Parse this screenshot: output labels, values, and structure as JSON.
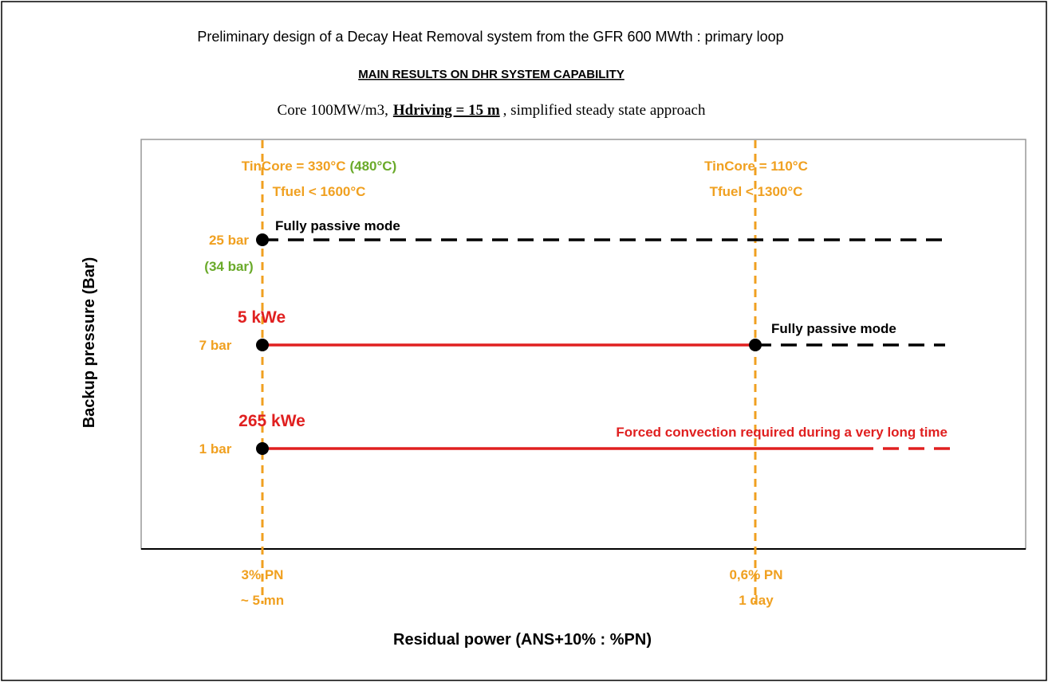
{
  "header": {
    "title": "Preliminary design of a Decay Heat Removal system from the GFR 600 MWth : primary loop",
    "subtitle": "MAIN RESULTS ON DHR SYSTEM CAPABILITY",
    "conditions": {
      "prefix": "Core 100MW/m3,",
      "highlight": "Hdriving = 15 m",
      "suffix": ", simplified steady state approach"
    }
  },
  "axes": {
    "y_title": "Backup pressure (Bar)",
    "x_title": "Residual power (ANS+10% : %PN)"
  },
  "columns": [
    {
      "tincore": "TinCore = 330°C",
      "tincore_alt": "(480°C)",
      "tfuel": "Tfuel < 1600°C",
      "power": "3% PN",
      "time": "~ 5 mn"
    },
    {
      "tincore": "TinCore = 110°C",
      "tfuel": "Tfuel < 1300°C",
      "power": "0,6% PN",
      "time": "1 day"
    }
  ],
  "rows": [
    {
      "pressure": "25 bar",
      "pressure_alt": "(34 bar)",
      "mode": "Fully passive mode"
    },
    {
      "pressure": "7 bar",
      "power": "5 kWe",
      "mode": "Fully passive mode"
    },
    {
      "pressure": "1 bar",
      "power": "265 kWe",
      "mode": "Forced convection required during a very long time"
    }
  ]
}
